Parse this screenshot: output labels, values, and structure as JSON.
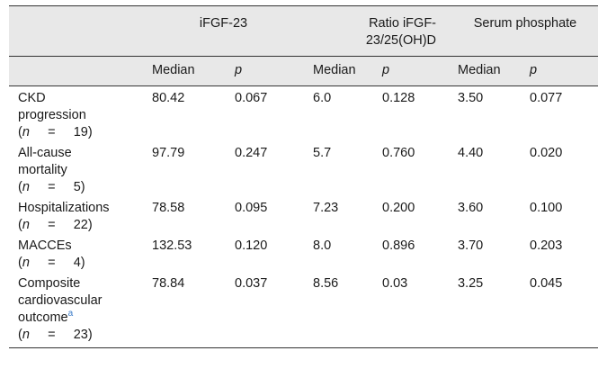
{
  "header": {
    "groups": [
      {
        "label": "iFGF-23"
      },
      {
        "label_line1": "Ratio iFGF-",
        "label_line2": "23/25(OH)D"
      },
      {
        "label": "Serum phosphate"
      }
    ],
    "sub": {
      "median": "Median",
      "p": "p"
    }
  },
  "n_symbol": "n",
  "equals": "=",
  "rows": [
    {
      "label_lines": [
        "CKD",
        "progression"
      ],
      "n": "19",
      "v": [
        "80.42",
        "0.067",
        "6.0",
        "0.128",
        "3.50",
        "0.077"
      ]
    },
    {
      "label_lines": [
        "All-cause",
        "mortality"
      ],
      "n": "5",
      "v": [
        "97.79",
        "0.247",
        "5.7",
        "0.760",
        "4.40",
        "0.020"
      ]
    },
    {
      "label_lines": [
        "Hospitalizations"
      ],
      "n": "22",
      "v": [
        "78.58",
        "0.095",
        "7.23",
        "0.200",
        "3.60",
        "0.100"
      ]
    },
    {
      "label_lines": [
        "MACCEs"
      ],
      "n": "4",
      "v": [
        "132.53",
        "0.120",
        "8.0",
        "0.896",
        "3.70",
        "0.203"
      ]
    },
    {
      "label_lines": [
        "Composite",
        "cardiovascular",
        "outcome"
      ],
      "footnote": "a",
      "n": "23",
      "v": [
        "78.84",
        "0.037",
        "8.56",
        "0.03",
        "3.25",
        "0.045"
      ]
    }
  ]
}
